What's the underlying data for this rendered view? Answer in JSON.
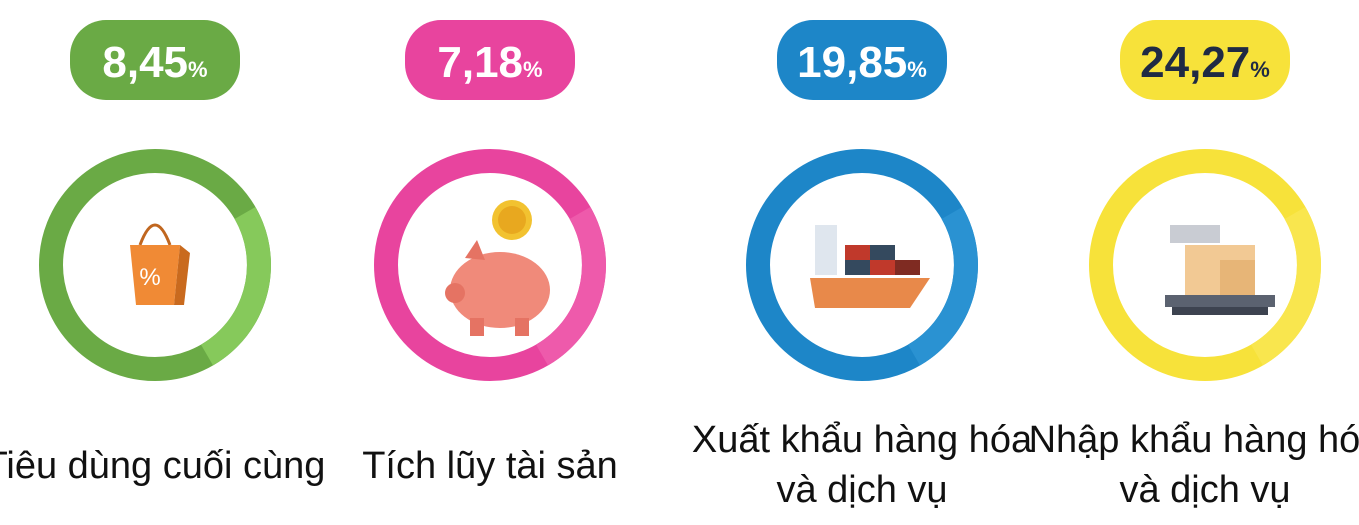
{
  "items": [
    {
      "value": "8,45",
      "unit": "%",
      "label_lines": [
        "Tiêu dùng cuối cùng"
      ]
    },
    {
      "value": "7,18",
      "unit": "%",
      "label_lines": [
        "Tích lũy tài sản"
      ]
    },
    {
      "value": "19,85",
      "unit": "%",
      "label_lines": [
        "Xuất khẩu hàng hóa",
        "và dịch vụ"
      ]
    },
    {
      "value": "24,27",
      "unit": "%",
      "label_lines": [
        "Nhập khẩu hàng hóa",
        "và dịch vụ"
      ]
    }
  ]
}
